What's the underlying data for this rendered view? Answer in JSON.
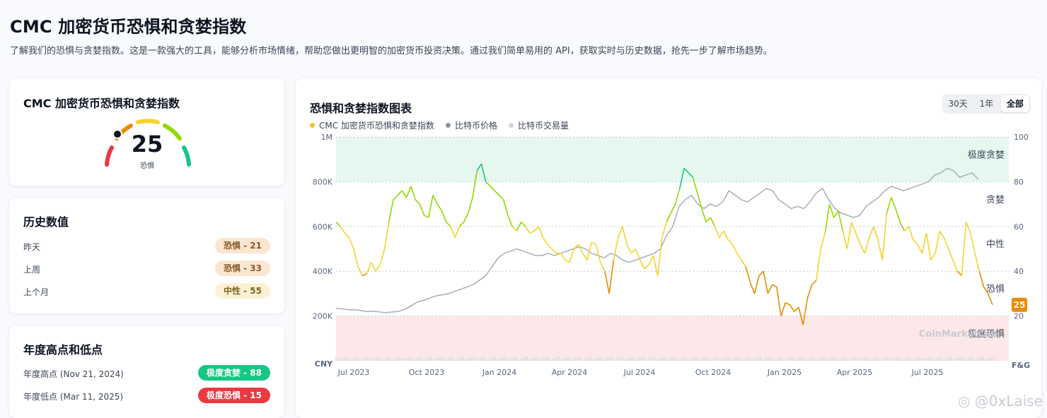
{
  "header": {
    "title": "CMC 加密货币恐惧和贪婪指数",
    "description": "了解我们的恐惧与贪婪指数。这是一款强大的工具，能够分析市场情绪，帮助您做出更明智的加密货币投资决策。通过我们简单易用的 API，获取实时与历史数据，抢先一步了解市场趋势。"
  },
  "gauge": {
    "title": "CMC 加密货币恐惧和贪婪指数",
    "value": "25",
    "label": "恐惧",
    "fraction": 0.25
  },
  "history": {
    "title": "历史数值",
    "rows": [
      {
        "label": "昨天",
        "value": "恐惧 - 21"
      },
      {
        "label": "上周",
        "value": "恐惧 - 33"
      },
      {
        "label": "上个月",
        "value": "中性 - 55"
      }
    ]
  },
  "yearly": {
    "title": "年度高点和低点",
    "rows": [
      {
        "label": "年度高点 (Nov 21, 2024)",
        "value": "极度贪婪 - 88"
      },
      {
        "label": "年度低点 (Mar 11, 2025)",
        "value": "极度恐惧 - 15"
      }
    ]
  },
  "chart_panel": {
    "title": "恐惧和贪婪指数图表",
    "tabs": [
      "30天",
      "1年",
      "全部"
    ],
    "active_tab": "全部",
    "legend": [
      "CMC 加密货币恐惧和贪婪指数",
      "比特币价格",
      "比特币交易量"
    ],
    "watermark_brand": "CoinMarketCap"
  },
  "chart_data": {
    "type": "line",
    "left_axis_ticks": [
      "1M",
      "800K",
      "600K",
      "400K",
      "200K"
    ],
    "left_axis_unit": "CNY",
    "right_axis_ticks": [
      "100",
      "80",
      "60",
      "40",
      "20"
    ],
    "right_axis_unit": "F&G",
    "x_ticks": [
      "Jul 2023",
      "Oct 2023",
      "Jan 2024",
      "Apr 2024",
      "Jul 2024",
      "Oct 2024",
      "Jan 2025",
      "Apr 2025",
      "Jul 2025"
    ],
    "zones": [
      "极度贪婪",
      "贪婪",
      "中性",
      "恐惧",
      "极度恐惧"
    ],
    "current_value": "25",
    "ylim_price": [
      0,
      1000000
    ],
    "ylim_index": [
      0,
      100
    ],
    "index_points": [
      62,
      60,
      57,
      55,
      50,
      42,
      38,
      39,
      44,
      40,
      43,
      50,
      62,
      72,
      74,
      76,
      73,
      78,
      72,
      70,
      65,
      64,
      74,
      70,
      67,
      62,
      60,
      55,
      60,
      62,
      66,
      73,
      85,
      88,
      80,
      78,
      76,
      74,
      72,
      65,
      60,
      58,
      62,
      60,
      57,
      58,
      60,
      55,
      52,
      50,
      48,
      48,
      45,
      44,
      50,
      52,
      48,
      45,
      53,
      52,
      44,
      40,
      30,
      45,
      55,
      60,
      52,
      48,
      50,
      45,
      41,
      43,
      47,
      38,
      55,
      62,
      66,
      70,
      77,
      86,
      84,
      82,
      75,
      68,
      62,
      64,
      60,
      55,
      58,
      54,
      52,
      48,
      45,
      42,
      35,
      30,
      38,
      40,
      30,
      34,
      33,
      20,
      26,
      25,
      22,
      24,
      16,
      28,
      34,
      36,
      50,
      57,
      70,
      64,
      67,
      58,
      50,
      62,
      57,
      52,
      48,
      55,
      60,
      54,
      45,
      66,
      73,
      68,
      62,
      58,
      60,
      54,
      52,
      48,
      57,
      45,
      48,
      58,
      55,
      50,
      45,
      40,
      38,
      62,
      57,
      48,
      40,
      33,
      30,
      25
    ],
    "price_points_k": [
      235,
      232,
      228,
      228,
      225,
      220,
      222,
      218,
      215,
      218,
      220,
      230,
      245,
      262,
      270,
      280,
      290,
      295,
      300,
      310,
      320,
      330,
      340,
      360,
      380,
      420,
      460,
      480,
      490,
      500,
      490,
      480,
      470,
      470,
      480,
      470,
      480,
      490,
      500,
      510,
      500,
      480,
      470,
      460,
      480,
      470,
      450,
      440,
      450,
      460,
      470,
      480,
      500,
      560,
      600,
      690,
      720,
      740,
      700,
      680,
      700,
      690,
      710,
      760,
      740,
      720,
      710,
      730,
      750,
      770,
      760,
      720,
      700,
      680,
      690,
      680,
      710,
      750,
      770,
      720,
      680,
      660,
      650,
      640,
      650,
      690,
      710,
      730,
      760,
      780,
      770,
      760,
      770,
      780,
      790,
      800,
      830,
      840,
      860,
      850,
      820,
      830,
      840,
      810
    ],
    "volume_note": ""
  }
}
